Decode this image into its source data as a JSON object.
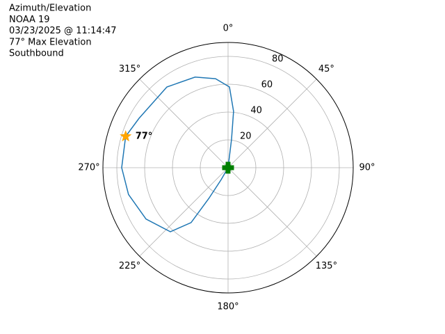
{
  "chart_data": {
    "type": "polar",
    "title_lines": [
      "Azimuth/Elevation",
      "NOAA 19",
      "03/23/2025 @ 11:14:47",
      "77° Max Elevation",
      "Southbound"
    ],
    "rlim": [
      0,
      90
    ],
    "rticks": [
      20,
      40,
      60,
      80
    ],
    "thetaticks": [
      {
        "value": 0,
        "label": "0°"
      },
      {
        "value": 45,
        "label": "45°"
      },
      {
        "value": 90,
        "label": "90°"
      },
      {
        "value": 135,
        "label": "135°"
      },
      {
        "value": 180,
        "label": "180°"
      },
      {
        "value": 225,
        "label": "225°"
      },
      {
        "value": 270,
        "label": "270°"
      },
      {
        "value": 315,
        "label": "315°"
      }
    ],
    "grid": true,
    "series": [
      {
        "color": "#1f77b4",
        "theta": [
          0,
          7,
          5.6,
          1,
          352,
          340,
          322.8,
          299,
          287,
          270,
          255,
          238,
          222,
          214,
          212,
          210,
          0
        ],
        "r": [
          0,
          20.6,
          40.7,
          58,
          64.6,
          69.3,
          72.8,
          73.2,
          77,
          76.5,
          74.1,
          69.6,
          62,
          47.6,
          26,
          9.9,
          0
        ]
      }
    ],
    "max_marker": {
      "theta": 287,
      "r": 77,
      "label": "77°",
      "color": "#ffa500"
    },
    "position_marker": {
      "theta": 0,
      "r": 0,
      "color": "#008000"
    }
  }
}
